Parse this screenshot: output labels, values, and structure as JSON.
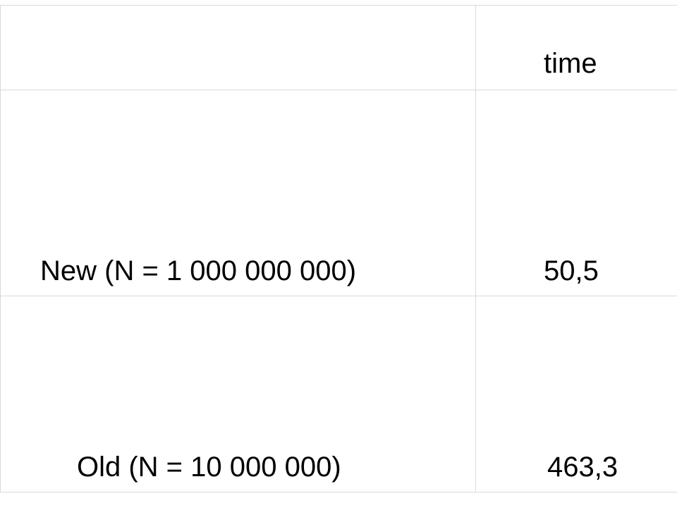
{
  "table": {
    "columns": [
      "",
      "time"
    ],
    "rows": [
      {
        "label": "New (N = 1 000 000 000)",
        "time": "50,5"
      },
      {
        "label": "Old (N = 10 000 000)",
        "time": "463,3"
      }
    ]
  },
  "colors": {
    "grid": "#d9d9d9",
    "text": "#000000",
    "background": "#ffffff"
  }
}
